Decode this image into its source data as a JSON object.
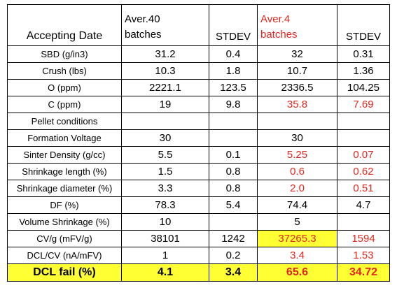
{
  "header": {
    "col1": "Accepting Date",
    "col2_line1": "Aver.40",
    "col2_line2": "batches",
    "col3": "STDEV",
    "col4_line1": "Aver.4",
    "col4_line2": "batches",
    "col5": "STDEV"
  },
  "rows": [
    {
      "label": "SBD (g/in3)",
      "a": "31.2",
      "b": "0.4",
      "c": "32",
      "d": "0.31"
    },
    {
      "label": "Crush (lbs)",
      "a": "10.3",
      "b": "1.8",
      "c": "10.7",
      "d": "1.36"
    },
    {
      "label": "O (ppm)",
      "a": "2221.1",
      "b": "123.5",
      "c": "2336.5",
      "d": "104.25"
    },
    {
      "label": "C (ppm)",
      "a": "19",
      "b": "9.8",
      "c": "35.8",
      "d": "7.69"
    },
    {
      "label": "Pellet conditions",
      "a": "",
      "b": "",
      "c": "",
      "d": ""
    },
    {
      "label": "Formation Voltage",
      "a": "30",
      "b": "",
      "c": "30",
      "d": ""
    },
    {
      "label": "Sinter Density (g/cc)",
      "a": "5.5",
      "b": "0.1",
      "c": "5.25",
      "d": "0.07"
    },
    {
      "label": "Shrinkage length (%)",
      "a": "1.5",
      "b": "0.8",
      "c": "0.6",
      "d": "0.62"
    },
    {
      "label": "Shrinkage diameter (%)",
      "a": "3.3",
      "b": "0.8",
      "c": "2.0",
      "d": "0.51"
    },
    {
      "label": "DF (%)",
      "a": "78.3",
      "b": "5.4",
      "c": "74.4",
      "d": "4.7"
    },
    {
      "label": "Volume Shrinkage (%)",
      "a": "10",
      "b": "",
      "c": "5",
      "d": ""
    },
    {
      "label": "CV/g (mFV/g)",
      "a": "38101",
      "b": "1242",
      "c": "37265.3",
      "d": "1594"
    },
    {
      "label": "DCL/CV (nA/mFV)",
      "a": "1",
      "b": "0.2",
      "c": "3.4",
      "d": "1.53"
    },
    {
      "label": "DCL fail (%)",
      "a": "4.1",
      "b": "3.4",
      "c": "65.6",
      "d": "34.72"
    }
  ],
  "colors": {
    "red_text": "#e3261f",
    "highlight": "#ffff33"
  }
}
